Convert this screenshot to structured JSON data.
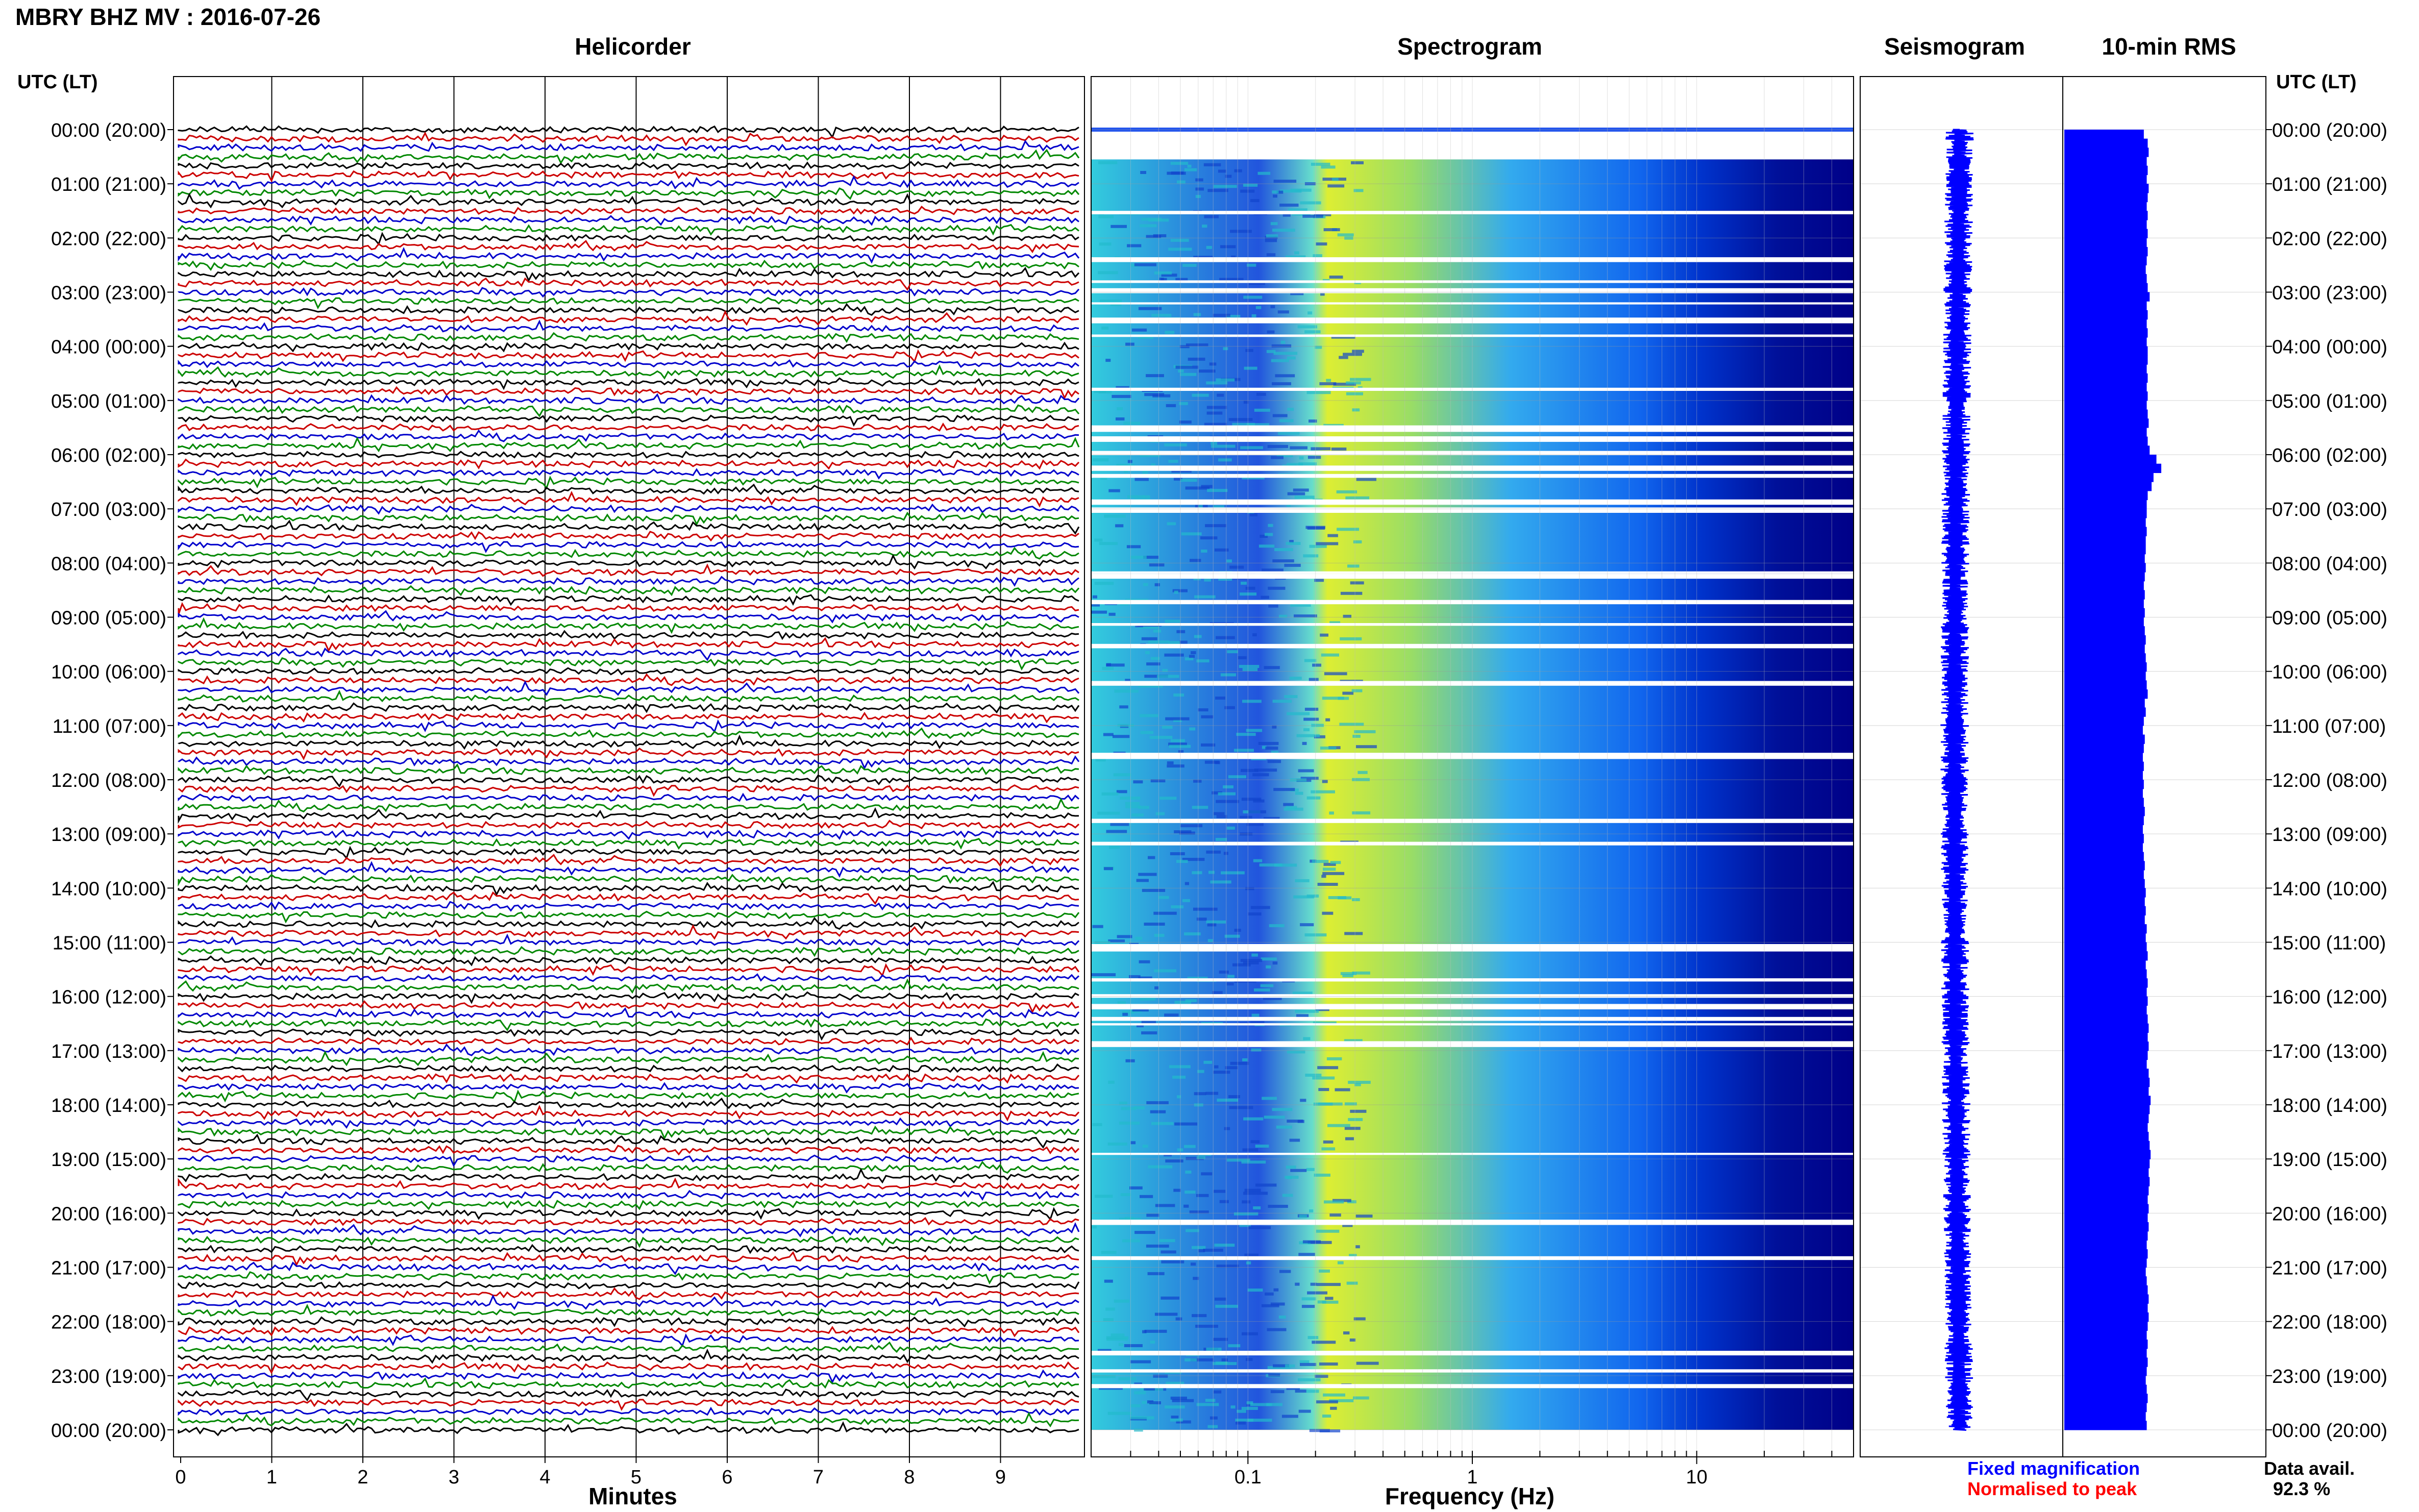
{
  "header": {
    "title": "MBRY BHZ MV : 2016-07-26",
    "tz_label": "UTC (LT)"
  },
  "panels": {
    "helicorder": "Helicorder",
    "spectrogram": "Spectrogram",
    "seismogram": "Seismogram",
    "rms": "10-min RMS"
  },
  "axes": {
    "minutes_label": "Minutes",
    "frequency_label": "Frequency (Hz)"
  },
  "legend": {
    "fixed": "Fixed magnification",
    "normalised": "Normalised to peak",
    "fixed_color": "#0000ff",
    "normalised_color": "#ff0000"
  },
  "data_availability": {
    "label": "Data avail.",
    "value": "92.3 %"
  },
  "trace_colors": [
    "#000000",
    "#cc0000",
    "#0000cc",
    "#008800"
  ],
  "chart_data": [
    {
      "type": "line",
      "name": "helicorder",
      "xlabel": "Minutes",
      "xlim": [
        0,
        10
      ],
      "xticks": [
        "0",
        "1",
        "2",
        "3",
        "4",
        "5",
        "6",
        "7",
        "8",
        "9"
      ],
      "ylabel": "UTC (LT)",
      "y_ticks": [
        "00:00 (20:00)",
        "01:00 (21:00)",
        "02:00 (22:00)",
        "03:00 (23:00)",
        "04:00 (00:00)",
        "05:00 (01:00)",
        "06:00 (02:00)",
        "07:00 (03:00)",
        "08:00 (04:00)",
        "09:00 (05:00)",
        "10:00 (06:00)",
        "11:00 (07:00)",
        "12:00 (08:00)",
        "13:00 (09:00)",
        "14:00 (10:00)",
        "15:00 (11:00)",
        "16:00 (12:00)",
        "17:00 (13:00)",
        "18:00 (14:00)",
        "19:00 (15:00)",
        "20:00 (16:00)",
        "21:00 (17:00)",
        "22:00 (18:00)",
        "23:00 (19:00)",
        "00:00 (20:00)"
      ],
      "rows_per_hour": 6
    },
    {
      "type": "heatmap",
      "name": "spectrogram",
      "xlabel": "Frequency (Hz)",
      "xscale": "log",
      "xlim": [
        0.02,
        50
      ],
      "xticks": [
        "0.1",
        "1",
        "10"
      ]
    },
    {
      "type": "line",
      "name": "seismogram",
      "colors": [
        "#0000ff",
        "#ff0000"
      ]
    },
    {
      "type": "bar",
      "name": "10-min RMS",
      "orientation": "horizontal",
      "color": "#0000ff",
      "values": [
        0.82,
        0.86,
        0.87,
        0.85,
        0.86,
        0.85,
        0.87,
        0.86,
        0.85,
        0.86,
        0.85,
        0.86,
        0.85,
        0.86,
        0.85,
        0.84,
        0.85,
        0.86,
        0.88,
        0.85,
        0.86,
        0.85,
        0.86,
        0.85,
        0.86,
        0.86,
        0.85,
        0.86,
        0.85,
        0.86,
        0.85,
        0.86,
        0.87,
        0.85,
        0.86,
        0.88,
        0.95,
        1.0,
        0.92,
        0.9,
        0.86,
        0.85,
        0.85,
        0.84,
        0.85,
        0.84,
        0.84,
        0.83,
        0.84,
        0.83,
        0.82,
        0.83,
        0.82,
        0.83,
        0.82,
        0.83,
        0.84,
        0.83,
        0.84,
        0.85,
        0.84,
        0.85,
        0.86,
        0.83,
        0.84,
        0.82,
        0.81,
        0.83,
        0.82,
        0.81,
        0.82,
        0.81,
        0.82,
        0.81,
        0.82,
        0.83,
        0.82,
        0.81,
        0.82,
        0.81,
        0.82,
        0.83,
        0.82,
        0.83,
        0.84,
        0.83,
        0.84,
        0.83,
        0.85,
        0.84,
        0.85,
        0.86,
        0.84,
        0.85,
        0.86,
        0.85,
        0.86,
        0.85,
        0.86,
        0.87,
        0.86,
        0.87,
        0.86,
        0.85,
        0.87,
        0.88,
        0.87,
        0.89,
        0.88,
        0.87,
        0.86,
        0.87,
        0.88,
        0.89,
        0.88,
        0.87,
        0.88,
        0.87,
        0.86,
        0.87,
        0.86,
        0.87,
        0.86,
        0.85,
        0.86,
        0.85,
        0.84,
        0.85,
        0.86,
        0.87,
        0.86,
        0.87,
        0.86,
        0.85,
        0.86,
        0.85,
        0.86,
        0.85,
        0.84,
        0.85,
        0.86,
        0.85,
        0.84,
        0.85
      ]
    }
  ]
}
